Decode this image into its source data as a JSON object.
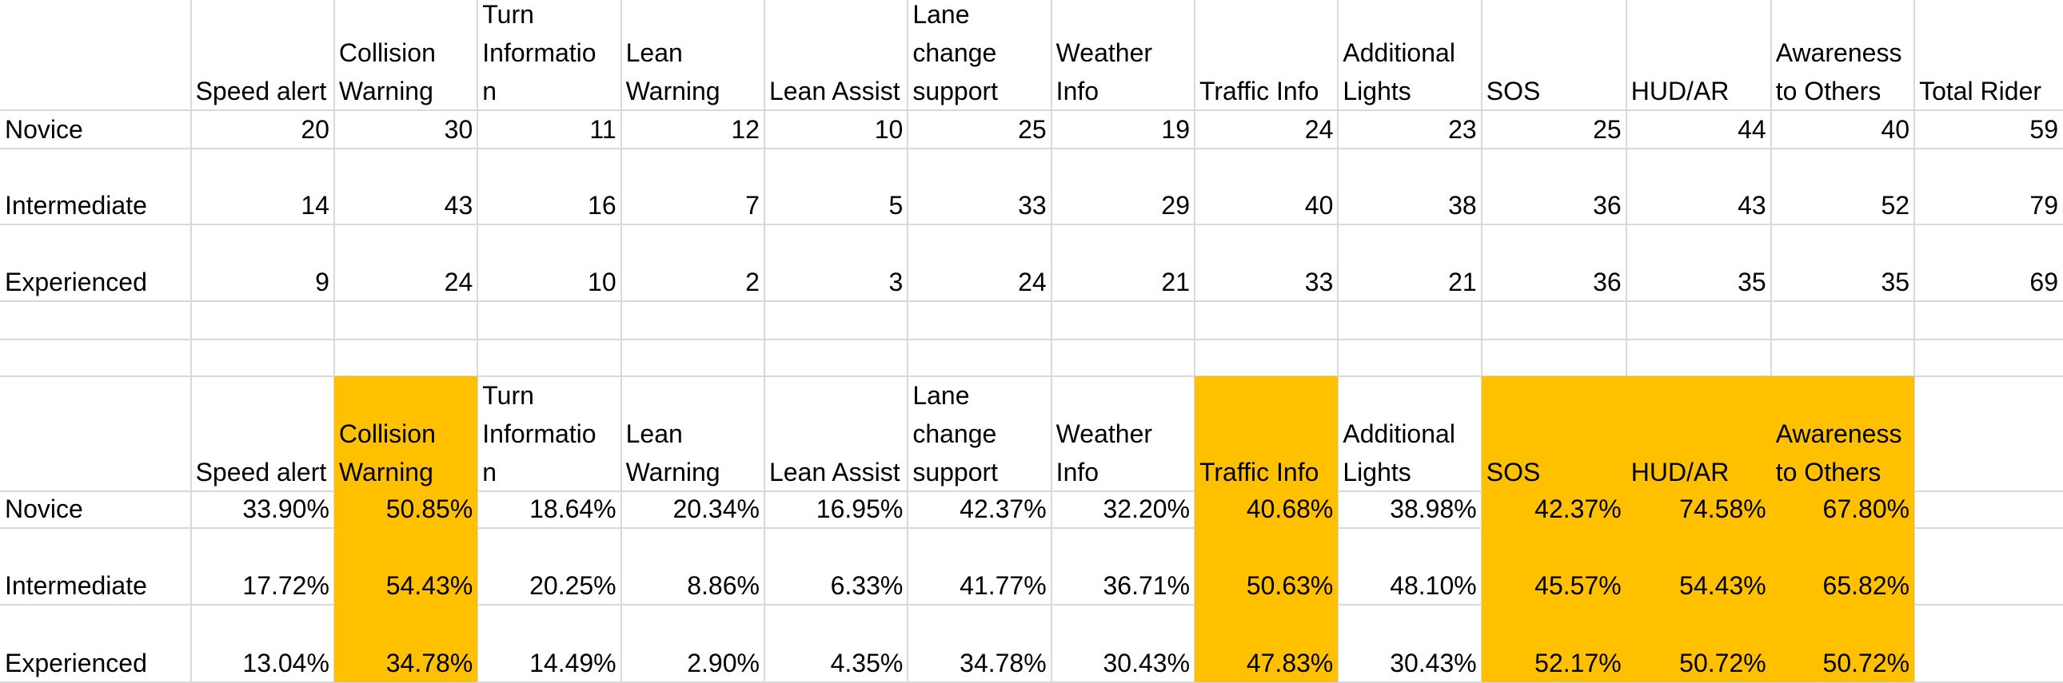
{
  "counts_table": {
    "headers": [
      "Speed alert",
      "Collision Warning",
      "Turn Information",
      "Lean Warning",
      "Lean Assist",
      "Lane change support",
      "Weather Info",
      "Traffic Info",
      "Additional Lights",
      "SOS",
      "HUD/AR",
      "Awareness to Others",
      "Total Rider"
    ],
    "header_lines": [
      [
        "Speed alert"
      ],
      [
        "Collision",
        "Warning"
      ],
      [
        "Turn",
        "Informatio",
        "n"
      ],
      [
        "Lean",
        "Warning"
      ],
      [
        "Lean Assist"
      ],
      [
        "Lane",
        "change",
        "support"
      ],
      [
        "Weather",
        "Info"
      ],
      [
        "Traffic Info"
      ],
      [
        "Additional",
        "Lights"
      ],
      [
        "SOS"
      ],
      [
        "HUD/AR"
      ],
      [
        "Awareness",
        "to Others"
      ],
      [
        "Total Rider"
      ]
    ],
    "rows": [
      {
        "label": "Novice",
        "values": [
          "20",
          "30",
          "11",
          "12",
          "10",
          "25",
          "19",
          "24",
          "23",
          "25",
          "44",
          "40",
          "59"
        ]
      },
      {
        "label": "Intermediate",
        "values": [
          "14",
          "43",
          "16",
          "7",
          "5",
          "33",
          "29",
          "40",
          "38",
          "36",
          "43",
          "52",
          "79"
        ]
      },
      {
        "label": "Experienced",
        "values": [
          "9",
          "24",
          "10",
          "2",
          "3",
          "24",
          "21",
          "33",
          "21",
          "36",
          "35",
          "35",
          "69"
        ]
      }
    ]
  },
  "percent_table": {
    "header_lines": [
      [
        "Speed alert"
      ],
      [
        "Collision",
        "Warning"
      ],
      [
        "Turn",
        "Informatio",
        "n"
      ],
      [
        "Lean",
        "Warning"
      ],
      [
        "Lean Assist"
      ],
      [
        "Lane",
        "change",
        "support"
      ],
      [
        "Weather",
        "Info"
      ],
      [
        "Traffic Info"
      ],
      [
        "Additional",
        "Lights"
      ],
      [
        "SOS"
      ],
      [
        "HUD/AR"
      ],
      [
        "Awareness",
        "to Others"
      ]
    ],
    "highlighted_columns": [
      1,
      7,
      9,
      10,
      11
    ],
    "highlight_color": "#ffc000",
    "rows": [
      {
        "label": "Novice",
        "values": [
          "33.90%",
          "50.85%",
          "18.64%",
          "20.34%",
          "16.95%",
          "42.37%",
          "32.20%",
          "40.68%",
          "38.98%",
          "42.37%",
          "74.58%",
          "67.80%"
        ]
      },
      {
        "label": "Intermediate",
        "values": [
          "17.72%",
          "54.43%",
          "20.25%",
          "8.86%",
          "6.33%",
          "41.77%",
          "36.71%",
          "50.63%",
          "48.10%",
          "45.57%",
          "54.43%",
          "65.82%"
        ]
      },
      {
        "label": "Experienced",
        "values": [
          "13.04%",
          "34.78%",
          "14.49%",
          "2.90%",
          "4.35%",
          "34.78%",
          "30.43%",
          "47.83%",
          "30.43%",
          "52.17%",
          "50.72%",
          "50.72%"
        ]
      }
    ]
  }
}
